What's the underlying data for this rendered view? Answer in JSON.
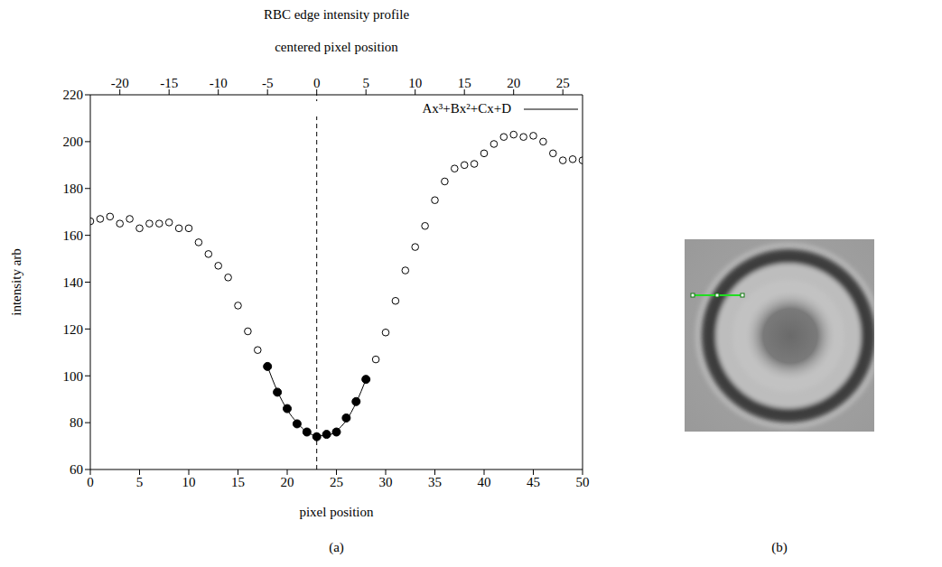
{
  "chart_data": {
    "type": "scatter",
    "title": "RBC edge intensity profile",
    "xlabel": "pixel position",
    "ylabel": "intensity arb",
    "x2label": "centered pixel position",
    "xlim": [
      0,
      50
    ],
    "xticks": [
      0,
      5,
      10,
      15,
      20,
      25,
      30,
      35,
      40,
      45,
      50
    ],
    "ylim": [
      60,
      220
    ],
    "yticks": [
      60,
      80,
      100,
      120,
      140,
      160,
      180,
      200,
      220
    ],
    "x2lim": [
      -23,
      27
    ],
    "x2ticks": [
      -20,
      -15,
      -10,
      -5,
      0,
      5,
      10,
      15,
      20,
      25
    ],
    "grid": false,
    "legend": "upper right",
    "reference_lines": [
      {
        "x": 23,
        "line_style": "dashed",
        "color": "#000000"
      }
    ],
    "series": [
      {
        "type": "scatter",
        "marker": "circle_open",
        "color": "#000000",
        "x": [
          0,
          1,
          2,
          3,
          4,
          5,
          6,
          7,
          8,
          9,
          10,
          11,
          12,
          13,
          14,
          15,
          16,
          17,
          29,
          30,
          31,
          32,
          33,
          34,
          35,
          36,
          37,
          38,
          39,
          40,
          41,
          42,
          43,
          44,
          45,
          46,
          47,
          48,
          49,
          50
        ],
        "values": [
          166,
          167,
          168,
          165,
          167,
          163,
          165,
          165,
          165.5,
          163,
          163,
          157,
          152,
          147,
          142,
          130,
          119,
          111,
          107,
          118.5,
          132,
          145,
          155,
          164,
          175,
          183,
          188.5,
          190,
          190.5,
          195,
          199,
          202,
          203,
          202,
          202.5,
          200,
          195,
          192,
          192.5,
          192
        ]
      },
      {
        "type": "scatter",
        "marker": "circle_filled",
        "color": "#000000",
        "x": [
          18,
          19,
          20,
          21,
          22,
          23,
          24,
          25,
          26,
          27,
          28
        ],
        "values": [
          104,
          93,
          86,
          79.5,
          76,
          74,
          75,
          76,
          82,
          89,
          98.5
        ]
      },
      {
        "type": "line",
        "name": "Ax³+Bx²+Cx+D",
        "line_style": "solid",
        "color": "#000000",
        "x": [
          18,
          19,
          20,
          21,
          22,
          23,
          24,
          25,
          26,
          27,
          28
        ],
        "values": [
          104,
          93.5,
          85.5,
          80,
          76,
          74.5,
          74.5,
          76.5,
          81,
          88.5,
          98.5
        ]
      }
    ]
  },
  "panel_labels": [
    "(a)",
    "(b)"
  ]
}
